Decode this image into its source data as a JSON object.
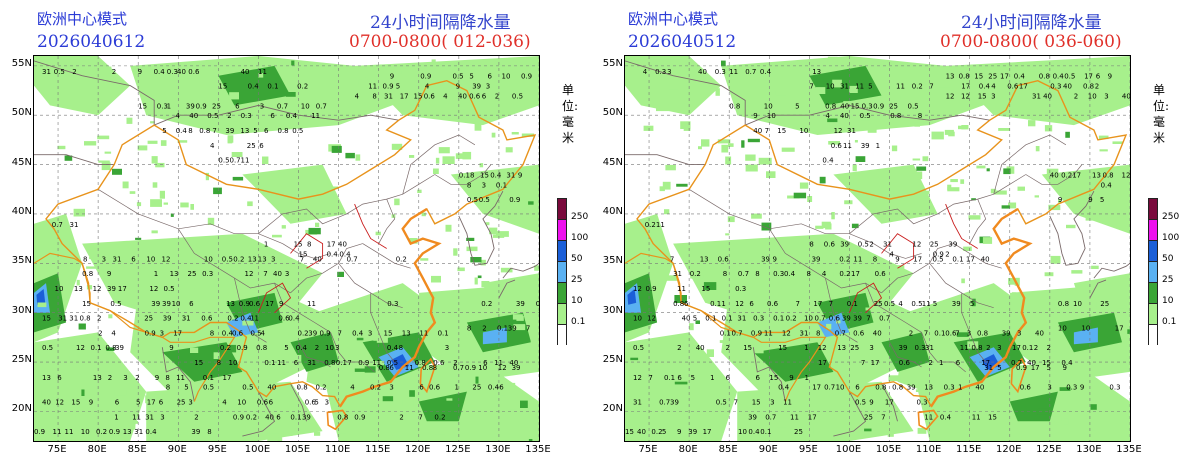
{
  "panels": [
    {
      "model_name": "欧洲中心模式",
      "run_id": "2026040612",
      "product_title": "24小时间隔降水量",
      "valid_period": "0700-0800( 012-036)",
      "unit_label": "单位: 毫米"
    },
    {
      "model_name": "欧洲中心模式",
      "run_id": "2026040512",
      "product_title": "24小时间隔降水量",
      "valid_period": "0700-0800( 036-060)",
      "unit_label": "单位: 毫米"
    }
  ],
  "axes": {
    "lat_labels": [
      "55N",
      "50N",
      "45N",
      "40N",
      "35N",
      "30N",
      "25N",
      "20N"
    ],
    "lon_labels": [
      "75E",
      "80E",
      "85E",
      "90E",
      "95E",
      "100E",
      "105E",
      "110E",
      "115E",
      "120E",
      "125E",
      "130E",
      "135E"
    ],
    "lat_range": [
      17,
      56
    ],
    "lon_range": [
      72,
      135
    ]
  },
  "legend": {
    "levels": [
      "250",
      "100",
      "50",
      "25",
      "10",
      "0.1"
    ],
    "colors": [
      "#7a0a3c",
      "#ee11ee",
      "#1b5fd8",
      "#5ab1f2",
      "#3aa536",
      "#a7f08c"
    ]
  },
  "colors": {
    "light_rain": "#a7f08c",
    "moderate_rain": "#3aa536",
    "heavy_rain": "#5ab1f2",
    "rainstorm": "#1b5fd8",
    "border_province": "#e8931c",
    "border_country": "#c91d1d",
    "border_other": "#7a6a6a"
  }
}
